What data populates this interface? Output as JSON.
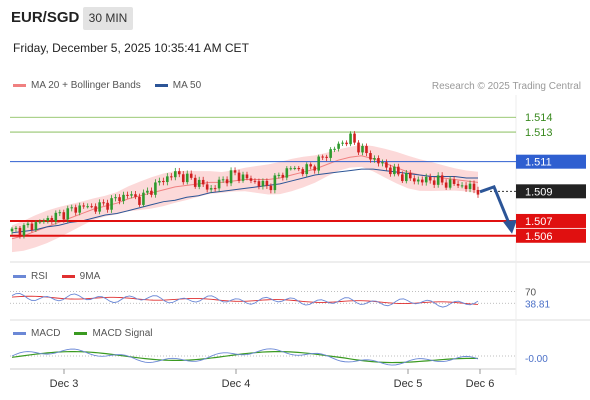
{
  "header": {
    "symbol": "EUR/SGD",
    "timeframe": "30 MIN",
    "datetime": "Friday, December 5, 2025 10:35:41 AM CET"
  },
  "legend_main": [
    {
      "label": "MA 20 + Bollinger Bands",
      "color": "#f08080"
    },
    {
      "label": "MA 50",
      "color": "#2c5597"
    }
  ],
  "credit": "Research © 2025 Trading Central",
  "legend_rsi": [
    {
      "label": "RSI",
      "color": "#6b88d6"
    },
    {
      "label": "9MA",
      "color": "#e03030"
    }
  ],
  "legend_macd": [
    {
      "label": "MACD",
      "color": "#6b88d6"
    },
    {
      "label": "MACD Signal",
      "color": "#3a9a20"
    }
  ],
  "colors": {
    "bull_candle": "#2e9a2e",
    "bear_candle": "#d02020",
    "bollinger_fill": "#fcd9d9",
    "ma20": "#f08080",
    "ma50": "#2c5597",
    "level_green": "#7ab648",
    "level_blue": "#2f5fd0",
    "level_red": "#e01010",
    "forecast_arrow": "#2c5597"
  },
  "chart_data": {
    "type": "candlestick",
    "x_labels": [
      "Dec 3",
      "Dec 4",
      "Dec 5",
      "Dec 6"
    ],
    "ylim": [
      1.5045,
      1.5155
    ],
    "levels": [
      {
        "value": 1.514,
        "label": "1.514",
        "style": "green-line"
      },
      {
        "value": 1.513,
        "label": "1.513",
        "style": "green-line"
      },
      {
        "value": 1.511,
        "label": "1.511",
        "style": "blue-tag"
      },
      {
        "value": 1.509,
        "label": "1.509",
        "style": "current-price"
      },
      {
        "value": 1.507,
        "label": "1.507",
        "style": "red-tag"
      },
      {
        "value": 1.506,
        "label": "1.506",
        "style": "red-tag"
      }
    ],
    "close_path": [
      1.5063,
      1.5065,
      1.5068,
      1.5071,
      1.5074,
      1.5077,
      1.508,
      1.5079,
      1.5081,
      1.5085,
      1.5088,
      1.5084,
      1.5092,
      1.5098,
      1.5102,
      1.5099,
      1.5096,
      1.5091,
      1.5097,
      1.5102,
      1.5099,
      1.5096,
      1.5093,
      1.5101,
      1.5106,
      1.5104,
      1.5108,
      1.5115,
      1.5121,
      1.5126,
      1.5118,
      1.5112,
      1.5107,
      1.5102,
      1.5099,
      1.5097,
      1.5098,
      1.5096,
      1.5095,
      1.5093,
      1.5091
    ],
    "ma20_path": [
      1.5058,
      1.506,
      1.5063,
      1.5066,
      1.5069,
      1.5072,
      1.5075,
      1.5078,
      1.508,
      1.5082,
      1.5085,
      1.5087,
      1.5089,
      1.5091,
      1.5093,
      1.5094,
      1.5095,
      1.5096,
      1.5096,
      1.5097,
      1.5098,
      1.5098,
      1.5098,
      1.5099,
      1.5101,
      1.5103,
      1.5105,
      1.5108,
      1.5111,
      1.5113,
      1.5114,
      1.5112,
      1.5109,
      1.5106,
      1.5103,
      1.5101,
      1.51,
      1.5099,
      1.5098,
      1.5097,
      1.5096
    ],
    "ma50_path": [
      1.5062,
      1.5063,
      1.5064,
      1.5066,
      1.5067,
      1.5069,
      1.507,
      1.5072,
      1.5074,
      1.5075,
      1.5077,
      1.5079,
      1.5081,
      1.5083,
      1.5084,
      1.5086,
      1.5087,
      1.5089,
      1.509,
      1.5091,
      1.5092,
      1.5093,
      1.5094,
      1.5095,
      1.5097,
      1.5099,
      1.5101,
      1.5102,
      1.5103,
      1.5104,
      1.5105,
      1.5105,
      1.5104,
      1.5103,
      1.5102,
      1.5101,
      1.51,
      1.51,
      1.51,
      1.5099,
      1.5099
    ],
    "rsi": {
      "levels": [
        {
          "value": 70,
          "label": "70"
        }
      ],
      "current": {
        "value": 38.81,
        "label": "38.81"
      },
      "ylim": [
        0,
        100
      ]
    },
    "macd": {
      "current": {
        "value": 0,
        "label": "-0.00"
      }
    }
  }
}
